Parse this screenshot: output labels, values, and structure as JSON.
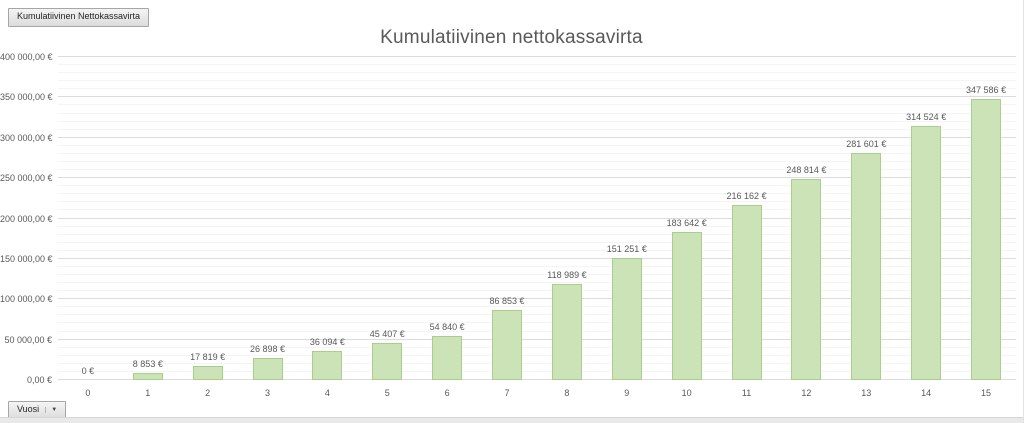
{
  "field_buttons": {
    "value_button_label": "Kumulatiivinen Nettokassavirta",
    "axis_button_label": "Vuosi",
    "axis_button_arrow": "▼"
  },
  "chart_data": {
    "type": "bar",
    "title": "Kumulatiivinen nettokassavirta",
    "xlabel": "Vuosi",
    "ylabel": "",
    "categories": [
      "0",
      "1",
      "2",
      "3",
      "4",
      "5",
      "6",
      "7",
      "8",
      "9",
      "10",
      "11",
      "12",
      "13",
      "14",
      "15"
    ],
    "values": [
      0,
      8853,
      17819,
      26898,
      36094,
      45407,
      54840,
      86853,
      118989,
      151251,
      183642,
      216162,
      248814,
      281601,
      314524,
      347586
    ],
    "data_labels": [
      "0 €",
      "8 853 €",
      "17 819 €",
      "26 898 €",
      "36 094 €",
      "45 407 €",
      "54 840 €",
      "86 853 €",
      "118 989 €",
      "151 251 €",
      "183 642 €",
      "216 162 €",
      "248 814 €",
      "281 601 €",
      "314 524 €",
      "347 586 €"
    ],
    "y_tick_labels": [
      "0,00 €",
      "50 000,00 €",
      "100 000,00 €",
      "150 000,00 €",
      "200 000,00 €",
      "250 000,00 €",
      "300 000,00 €",
      "350 000,00 €",
      "400 000,00 €"
    ],
    "ylim": [
      0,
      400000
    ],
    "major_unit": 50000,
    "minor_unit": 10000,
    "grid": true,
    "legend": "none",
    "colors": {
      "bar_fill": "#cbe3b6",
      "bar_border": "#a8cf8b",
      "major_gridline": "#dcdcdc",
      "minor_gridline": "#f4f4f4",
      "text": "#595959",
      "title": "#595959"
    }
  }
}
